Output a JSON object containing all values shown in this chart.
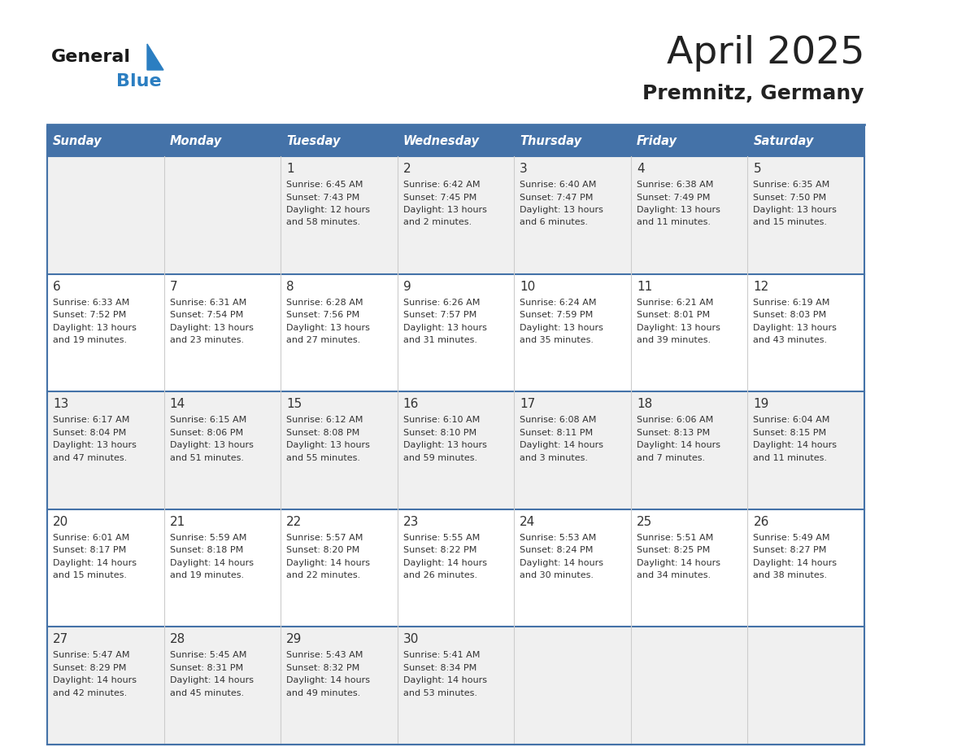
{
  "title": "April 2025",
  "subtitle": "Premnitz, Germany",
  "days_of_week": [
    "Sunday",
    "Monday",
    "Tuesday",
    "Wednesday",
    "Thursday",
    "Friday",
    "Saturday"
  ],
  "header_bg": "#4472A8",
  "header_text_color": "#FFFFFF",
  "row_bg_even": "#FFFFFF",
  "row_bg_odd": "#F0F0F0",
  "cell_text_color": "#333333",
  "border_color": "#4472A8",
  "divider_color": "#4472A8",
  "title_color": "#222222",
  "subtitle_color": "#222222",
  "logo_general_color": "#1a1a1a",
  "logo_blue_color": "#2B7EC1",
  "weeks": [
    [
      {
        "day": null
      },
      {
        "day": null
      },
      {
        "day": 1,
        "sunrise": "6:45 AM",
        "sunset": "7:43 PM",
        "daylight": "12 hours and 58 minutes."
      },
      {
        "day": 2,
        "sunrise": "6:42 AM",
        "sunset": "7:45 PM",
        "daylight": "13 hours and 2 minutes."
      },
      {
        "day": 3,
        "sunrise": "6:40 AM",
        "sunset": "7:47 PM",
        "daylight": "13 hours and 6 minutes."
      },
      {
        "day": 4,
        "sunrise": "6:38 AM",
        "sunset": "7:49 PM",
        "daylight": "13 hours and 11 minutes."
      },
      {
        "day": 5,
        "sunrise": "6:35 AM",
        "sunset": "7:50 PM",
        "daylight": "13 hours and 15 minutes."
      }
    ],
    [
      {
        "day": 6,
        "sunrise": "6:33 AM",
        "sunset": "7:52 PM",
        "daylight": "13 hours and 19 minutes."
      },
      {
        "day": 7,
        "sunrise": "6:31 AM",
        "sunset": "7:54 PM",
        "daylight": "13 hours and 23 minutes."
      },
      {
        "day": 8,
        "sunrise": "6:28 AM",
        "sunset": "7:56 PM",
        "daylight": "13 hours and 27 minutes."
      },
      {
        "day": 9,
        "sunrise": "6:26 AM",
        "sunset": "7:57 PM",
        "daylight": "13 hours and 31 minutes."
      },
      {
        "day": 10,
        "sunrise": "6:24 AM",
        "sunset": "7:59 PM",
        "daylight": "13 hours and 35 minutes."
      },
      {
        "day": 11,
        "sunrise": "6:21 AM",
        "sunset": "8:01 PM",
        "daylight": "13 hours and 39 minutes."
      },
      {
        "day": 12,
        "sunrise": "6:19 AM",
        "sunset": "8:03 PM",
        "daylight": "13 hours and 43 minutes."
      }
    ],
    [
      {
        "day": 13,
        "sunrise": "6:17 AM",
        "sunset": "8:04 PM",
        "daylight": "13 hours and 47 minutes."
      },
      {
        "day": 14,
        "sunrise": "6:15 AM",
        "sunset": "8:06 PM",
        "daylight": "13 hours and 51 minutes."
      },
      {
        "day": 15,
        "sunrise": "6:12 AM",
        "sunset": "8:08 PM",
        "daylight": "13 hours and 55 minutes."
      },
      {
        "day": 16,
        "sunrise": "6:10 AM",
        "sunset": "8:10 PM",
        "daylight": "13 hours and 59 minutes."
      },
      {
        "day": 17,
        "sunrise": "6:08 AM",
        "sunset": "8:11 PM",
        "daylight": "14 hours and 3 minutes."
      },
      {
        "day": 18,
        "sunrise": "6:06 AM",
        "sunset": "8:13 PM",
        "daylight": "14 hours and 7 minutes."
      },
      {
        "day": 19,
        "sunrise": "6:04 AM",
        "sunset": "8:15 PM",
        "daylight": "14 hours and 11 minutes."
      }
    ],
    [
      {
        "day": 20,
        "sunrise": "6:01 AM",
        "sunset": "8:17 PM",
        "daylight": "14 hours and 15 minutes."
      },
      {
        "day": 21,
        "sunrise": "5:59 AM",
        "sunset": "8:18 PM",
        "daylight": "14 hours and 19 minutes."
      },
      {
        "day": 22,
        "sunrise": "5:57 AM",
        "sunset": "8:20 PM",
        "daylight": "14 hours and 22 minutes."
      },
      {
        "day": 23,
        "sunrise": "5:55 AM",
        "sunset": "8:22 PM",
        "daylight": "14 hours and 26 minutes."
      },
      {
        "day": 24,
        "sunrise": "5:53 AM",
        "sunset": "8:24 PM",
        "daylight": "14 hours and 30 minutes."
      },
      {
        "day": 25,
        "sunrise": "5:51 AM",
        "sunset": "8:25 PM",
        "daylight": "14 hours and 34 minutes."
      },
      {
        "day": 26,
        "sunrise": "5:49 AM",
        "sunset": "8:27 PM",
        "daylight": "14 hours and 38 minutes."
      }
    ],
    [
      {
        "day": 27,
        "sunrise": "5:47 AM",
        "sunset": "8:29 PM",
        "daylight": "14 hours and 42 minutes."
      },
      {
        "day": 28,
        "sunrise": "5:45 AM",
        "sunset": "8:31 PM",
        "daylight": "14 hours and 45 minutes."
      },
      {
        "day": 29,
        "sunrise": "5:43 AM",
        "sunset": "8:32 PM",
        "daylight": "14 hours and 49 minutes."
      },
      {
        "day": 30,
        "sunrise": "5:41 AM",
        "sunset": "8:34 PM",
        "daylight": "14 hours and 53 minutes."
      },
      {
        "day": null
      },
      {
        "day": null
      },
      {
        "day": null
      }
    ]
  ],
  "fig_width": 11.88,
  "fig_height": 9.18,
  "dpi": 100
}
